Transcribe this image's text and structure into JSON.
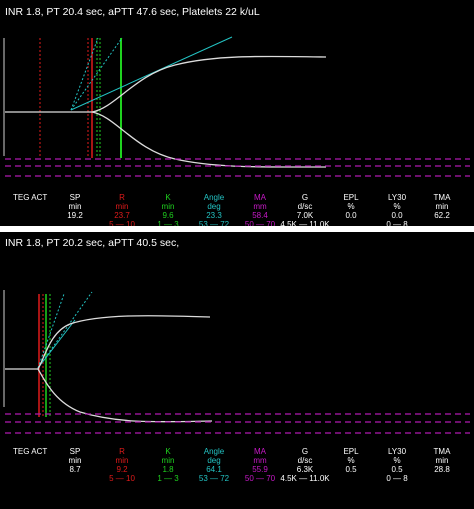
{
  "colors": {
    "r": "#e01b1b",
    "k": "#1fd21f",
    "angle": "#23c3c3",
    "ma": "#c819c8",
    "trace": "#dcdcdc",
    "limit": "#b01ab0"
  },
  "panels": [
    {
      "title": "INR 1.8, PT 20.4 sec, aPTT 47.6 sec, Platelets 22 k/uL",
      "label": "TEG ACT",
      "params": [
        {
          "key": "sp",
          "name": "SP",
          "unit": "min",
          "value": "19.2",
          "range": ""
        },
        {
          "key": "r",
          "name": "R",
          "unit": "min",
          "value": "23.7",
          "range": "5 — 10"
        },
        {
          "key": "k",
          "name": "K",
          "unit": "min",
          "value": "9.6",
          "range": "1 — 3"
        },
        {
          "key": "angle",
          "name": "Angle",
          "unit": "deg",
          "value": "23.3",
          "range": "53 — 72"
        },
        {
          "key": "ma",
          "name": "MA",
          "unit": "mm",
          "value": "58.4",
          "range": "50 — 70"
        },
        {
          "key": "g",
          "name": "G",
          "unit": "d/sc",
          "value": "7.0K",
          "range": "4.5K — 11.0K"
        },
        {
          "key": "epl",
          "name": "EPL",
          "unit": "%",
          "value": "0.0",
          "range": ""
        },
        {
          "key": "ly30",
          "name": "LY30",
          "unit": "%",
          "value": "0.0",
          "range": "0 — 8"
        },
        {
          "key": "tma",
          "name": "TMA",
          "unit": "min",
          "value": "62.2",
          "range": ""
        }
      ]
    },
    {
      "title": "INR 1.8, PT 20.2 sec, aPTT 40.5 sec,",
      "label": "TEG ACT",
      "params": [
        {
          "key": "sp",
          "name": "SP",
          "unit": "min",
          "value": "8.7",
          "range": ""
        },
        {
          "key": "r",
          "name": "R",
          "unit": "min",
          "value": "9.2",
          "range": "5 — 10"
        },
        {
          "key": "k",
          "name": "K",
          "unit": "min",
          "value": "1.8",
          "range": "1 — 3"
        },
        {
          "key": "angle",
          "name": "Angle",
          "unit": "deg",
          "value": "64.1",
          "range": "53 — 72"
        },
        {
          "key": "ma",
          "name": "MA",
          "unit": "mm",
          "value": "55.9",
          "range": "50 — 70"
        },
        {
          "key": "g",
          "name": "G",
          "unit": "d/sc",
          "value": "6.3K",
          "range": "4.5K — 11.0K"
        },
        {
          "key": "epl",
          "name": "EPL",
          "unit": "%",
          "value": "0.5",
          "range": ""
        },
        {
          "key": "ly30",
          "name": "LY30",
          "unit": "%",
          "value": "0.5",
          "range": "0 — 8"
        },
        {
          "key": "tma",
          "name": "TMA",
          "unit": "min",
          "value": "28.8",
          "range": ""
        }
      ]
    }
  ]
}
